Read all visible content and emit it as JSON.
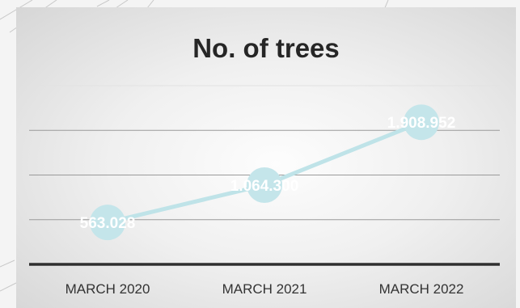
{
  "chart_data": {
    "type": "line",
    "title": "No. of trees",
    "categories": [
      "MARCH 2020",
      "MARCH 2021",
      "MARCH 2022"
    ],
    "values": [
      563028,
      1064300,
      1908952
    ],
    "data_labels": [
      "563.028",
      "1.064.300",
      "1.908.952"
    ],
    "ylim": [
      0,
      2400000
    ],
    "grid": true,
    "legend": "none",
    "xlabel": "",
    "ylabel": ""
  },
  "colors": {
    "series": "#bfe3e8",
    "marker": "#c4e5ea",
    "axis": "#2f2f2f",
    "gridline": "#9a9a9a",
    "title": "#262626"
  }
}
